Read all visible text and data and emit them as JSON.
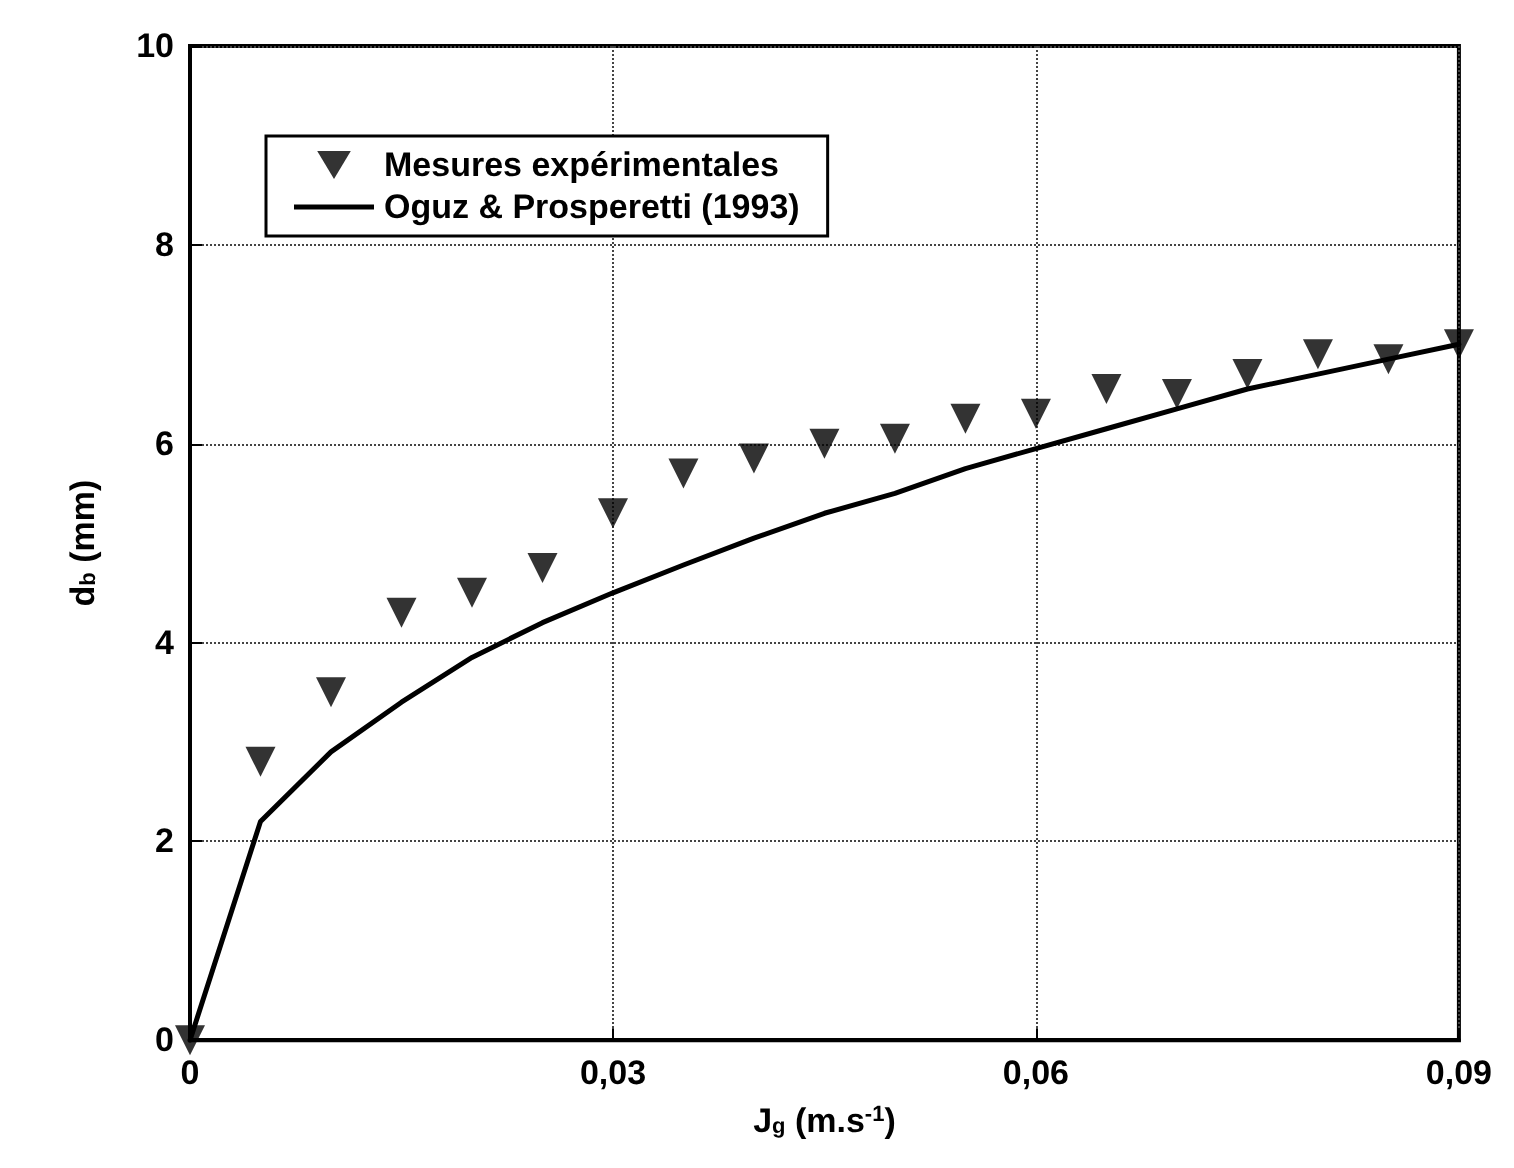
{
  "chart_data": {
    "type": "scatter",
    "xlabel": "J$_{g}$ (m.s$^{-1}$)",
    "ylabel": "d$_{b}$ (mm)",
    "x": [
      0,
      0.005,
      0.01,
      0.015,
      0.02,
      0.025,
      0.03,
      0.035,
      0.04,
      0.045,
      0.05,
      0.055,
      0.06,
      0.065,
      0.07,
      0.075,
      0.08,
      0.085,
      0.09
    ],
    "series": [
      {
        "name": "Mesures expérimentales",
        "type": "scatter",
        "marker": "triangle",
        "color": "#000000",
        "values": [
          0,
          2.8,
          3.5,
          4.3,
          4.5,
          4.75,
          5.3,
          5.7,
          5.85,
          6.0,
          6.05,
          6.25,
          6.3,
          6.55,
          6.5,
          6.7,
          6.9,
          6.85,
          7.0
        ]
      },
      {
        "name": "Oguz & Prosperetti (1993)",
        "type": "line",
        "marker": "none",
        "line_style": "solid",
        "color": "#000000",
        "values": [
          0,
          2.2,
          2.9,
          3.4,
          3.85,
          4.2,
          4.5,
          4.78,
          5.05,
          5.3,
          5.5,
          5.75,
          5.95,
          6.15,
          6.35,
          6.55,
          6.7,
          6.85,
          7.0
        ]
      }
    ],
    "xlim": [
      0,
      0.09
    ],
    "xticks": [
      {
        "value": 0,
        "label": "0"
      },
      {
        "value": 0.03,
        "label": "0,03"
      },
      {
        "value": 0.06,
        "label": "0,06"
      },
      {
        "value": 0.09,
        "label": "0,09"
      }
    ],
    "ylim": [
      0,
      10
    ],
    "yticks": [
      0,
      2,
      4,
      6,
      8,
      10
    ],
    "grid": true,
    "legend": "top left"
  }
}
